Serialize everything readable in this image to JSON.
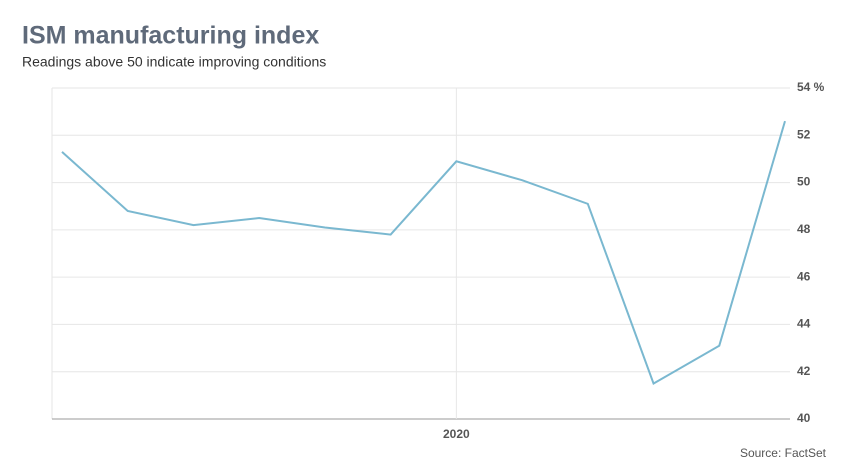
{
  "chart_data": {
    "type": "line",
    "title": "ISM manufacturing index",
    "subtitle": "Readings above 50 indicate improving conditions",
    "source": "Source: FactSet",
    "categories": [
      null,
      null,
      null,
      null,
      null,
      null,
      "2020",
      null,
      null,
      null,
      null,
      null
    ],
    "series": [
      {
        "name": "ISM manufacturing index",
        "color": "#7ab8d0",
        "values": [
          51.3,
          48.8,
          48.2,
          48.5,
          48.1,
          47.8,
          50.9,
          50.1,
          49.1,
          41.5,
          43.1,
          52.6
        ]
      }
    ],
    "ylim": [
      40,
      54
    ],
    "yticks": [
      40,
      42,
      44,
      46,
      48,
      50,
      52,
      {
        "value": 54,
        "label": "54 %"
      }
    ],
    "grid": true
  }
}
